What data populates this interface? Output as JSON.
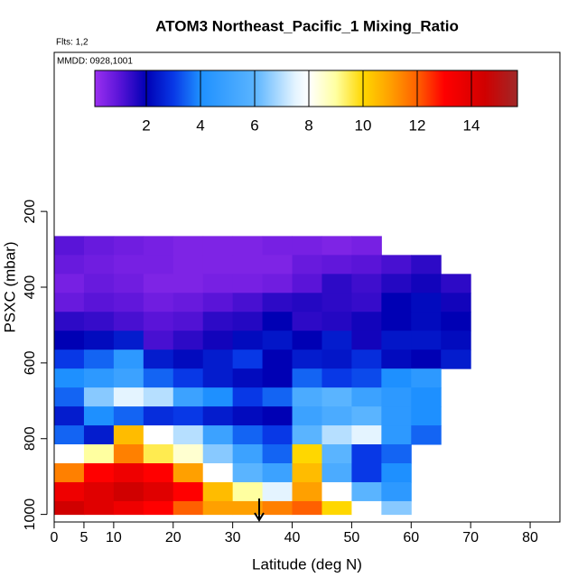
{
  "chart_data": {
    "type": "heatmap",
    "title": "ATOM3 Northeast_Pacific_1 Mixing_Ratio",
    "flights_note": "Flts: 1,2",
    "date_note": "MMDD: 0928,1001",
    "x_label": "Latitude (deg N)",
    "y_label": "PSXC (mbar)",
    "xlim": [
      0,
      85
    ],
    "xticks": [
      0,
      5,
      10,
      20,
      30,
      40,
      50,
      60,
      70,
      80
    ],
    "ylim": [
      1020,
      -220
    ],
    "yticks": [
      200,
      400,
      600,
      800,
      1000
    ],
    "x_edges": [
      0,
      5,
      10,
      15,
      20,
      25,
      30,
      35,
      40,
      45,
      50,
      55,
      60,
      65,
      70,
      75
    ],
    "y_edges": [
      265,
      315,
      365,
      415,
      465,
      515,
      565,
      615,
      665,
      715,
      765,
      815,
      865,
      915,
      965,
      1000
    ],
    "values": [
      [
        1.0,
        0.8,
        0.7,
        0.6,
        0.5,
        0.5,
        0.5,
        0.6,
        0.6,
        0.5,
        0.6,
        null,
        null,
        null,
        null
      ],
      [
        0.8,
        0.7,
        0.6,
        0.6,
        0.5,
        0.5,
        0.5,
        0.5,
        0.8,
        0.9,
        1.0,
        1.2,
        1.5,
        null,
        null
      ],
      [
        0.6,
        0.8,
        0.7,
        0.5,
        0.5,
        0.6,
        0.6,
        0.7,
        1.0,
        1.5,
        1.3,
        1.6,
        1.8,
        1.5,
        null
      ],
      [
        0.8,
        1.0,
        0.9,
        0.7,
        0.8,
        1.0,
        1.2,
        1.5,
        1.6,
        1.5,
        1.4,
        2.0,
        2.2,
        1.8,
        null
      ],
      [
        1.5,
        1.4,
        1.2,
        1.0,
        1.1,
        1.5,
        1.6,
        2.0,
        1.5,
        1.6,
        1.8,
        2.0,
        2.2,
        2.0,
        null
      ],
      [
        2.0,
        2.2,
        2.5,
        1.2,
        1.5,
        1.8,
        2.2,
        2.4,
        2.0,
        2.5,
        1.8,
        2.4,
        2.4,
        2.2,
        null
      ],
      [
        3.0,
        3.5,
        4.5,
        2.5,
        2.2,
        2.5,
        3.0,
        2.0,
        2.5,
        2.4,
        2.8,
        2.2,
        2.0,
        2.5,
        null
      ],
      [
        4.0,
        4.5,
        5.0,
        3.5,
        3.0,
        2.5,
        2.2,
        2.0,
        3.5,
        3.0,
        3.2,
        4.0,
        4.5,
        null,
        null
      ],
      [
        3.5,
        6.5,
        7.5,
        7.0,
        5.0,
        4.0,
        3.0,
        3.5,
        5.5,
        6.0,
        5.0,
        4.5,
        4.0,
        null,
        null
      ],
      [
        2.5,
        4.0,
        3.5,
        2.8,
        3.0,
        2.5,
        2.2,
        2.0,
        5.0,
        5.5,
        6.0,
        4.5,
        4.0,
        null,
        null
      ],
      [
        3.5,
        2.5,
        10.5,
        8.0,
        7.0,
        5.0,
        3.5,
        3.0,
        6.0,
        7.0,
        7.5,
        4.5,
        3.5,
        null,
        null
      ],
      [
        8.0,
        9.0,
        11.5,
        9.5,
        8.5,
        6.5,
        5.0,
        3.5,
        10.0,
        6.0,
        3.0,
        3.5,
        null,
        null,
        null
      ],
      [
        11.5,
        13.0,
        13.5,
        13.0,
        11.0,
        8.0,
        6.0,
        5.0,
        10.5,
        5.5,
        3.0,
        4.0,
        null,
        null,
        null
      ],
      [
        13.5,
        14.0,
        14.5,
        14.0,
        13.0,
        10.5,
        9.0,
        7.5,
        11.0,
        8.0,
        6.0,
        4.5,
        null,
        null,
        null
      ],
      [
        14.5,
        14.0,
        13.5,
        13.0,
        12.0,
        11.0,
        11.0,
        11.5,
        12.0,
        10.0,
        8.0,
        6.5,
        null,
        null,
        null
      ]
    ],
    "colorbar_lim": [
      0.1,
      15.7
    ],
    "colorbar_ticks": [
      2,
      4,
      6,
      8,
      10,
      12,
      14
    ],
    "colorscale": [
      {
        "value": 0.1,
        "color": "#9b30f0"
      },
      {
        "value": 1,
        "color": "#5a14d8"
      },
      {
        "value": 2,
        "color": "#0000b4"
      },
      {
        "value": 3,
        "color": "#0838e6"
      },
      {
        "value": 4,
        "color": "#1e90ff"
      },
      {
        "value": 6,
        "color": "#5ab4ff"
      },
      {
        "value": 7.5,
        "color": "#e4f4ff"
      },
      {
        "value": 8,
        "color": "#ffffff"
      },
      {
        "value": 9,
        "color": "#ffffa0"
      },
      {
        "value": 10,
        "color": "#ffd700"
      },
      {
        "value": 11,
        "color": "#ffa000"
      },
      {
        "value": 12,
        "color": "#ff6000"
      },
      {
        "value": 13,
        "color": "#ff0000"
      },
      {
        "value": 14.5,
        "color": "#d00000"
      },
      {
        "value": 15.7,
        "color": "#a02828"
      }
    ]
  }
}
